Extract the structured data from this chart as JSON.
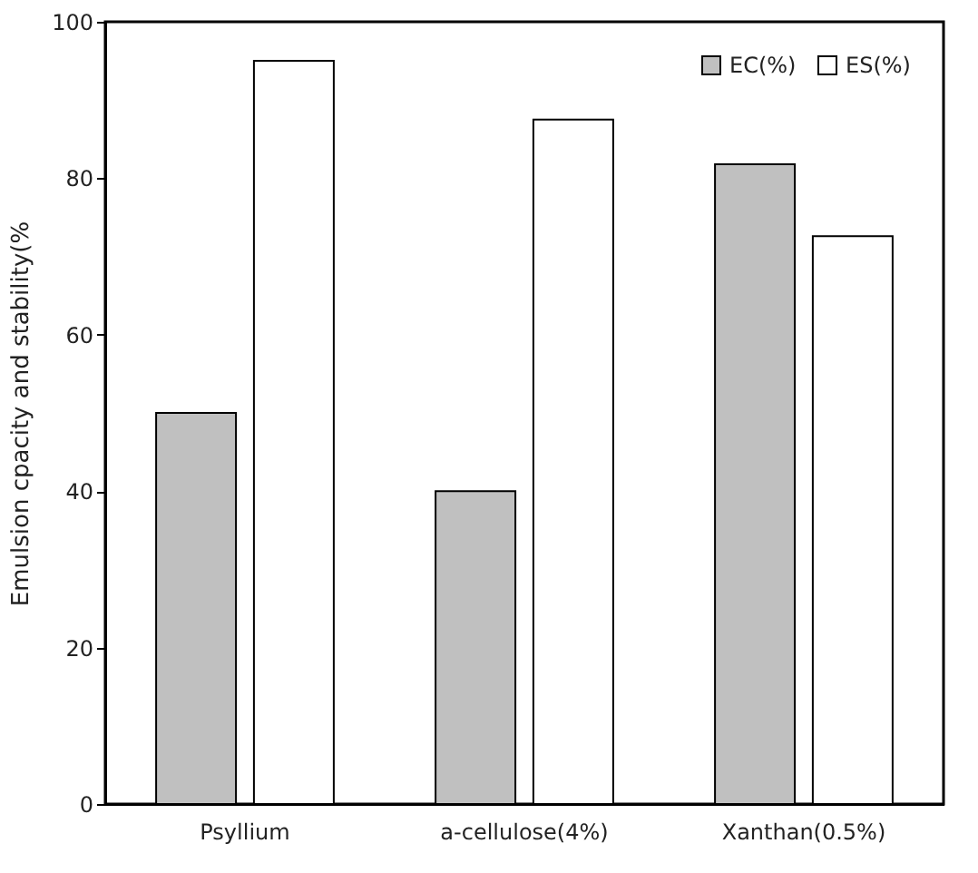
{
  "chart_data": {
    "type": "bar",
    "ylabel": "Emulsion cpacity and stability(%",
    "categories": [
      "Psyllium",
      "a-cellulose(4%)",
      "Xanthan(0.5%)"
    ],
    "series": [
      {
        "name": "EC(%)",
        "color": "#c0c0c0",
        "values": [
          50,
          40,
          81.8
        ]
      },
      {
        "name": "ES(%)",
        "color": "#ffffff",
        "values": [
          95,
          87.5,
          72.6
        ]
      }
    ],
    "ylim": [
      0,
      100
    ],
    "yticks": [
      0,
      20,
      40,
      60,
      80,
      100
    ],
    "grid": false,
    "legend": "top right"
  }
}
